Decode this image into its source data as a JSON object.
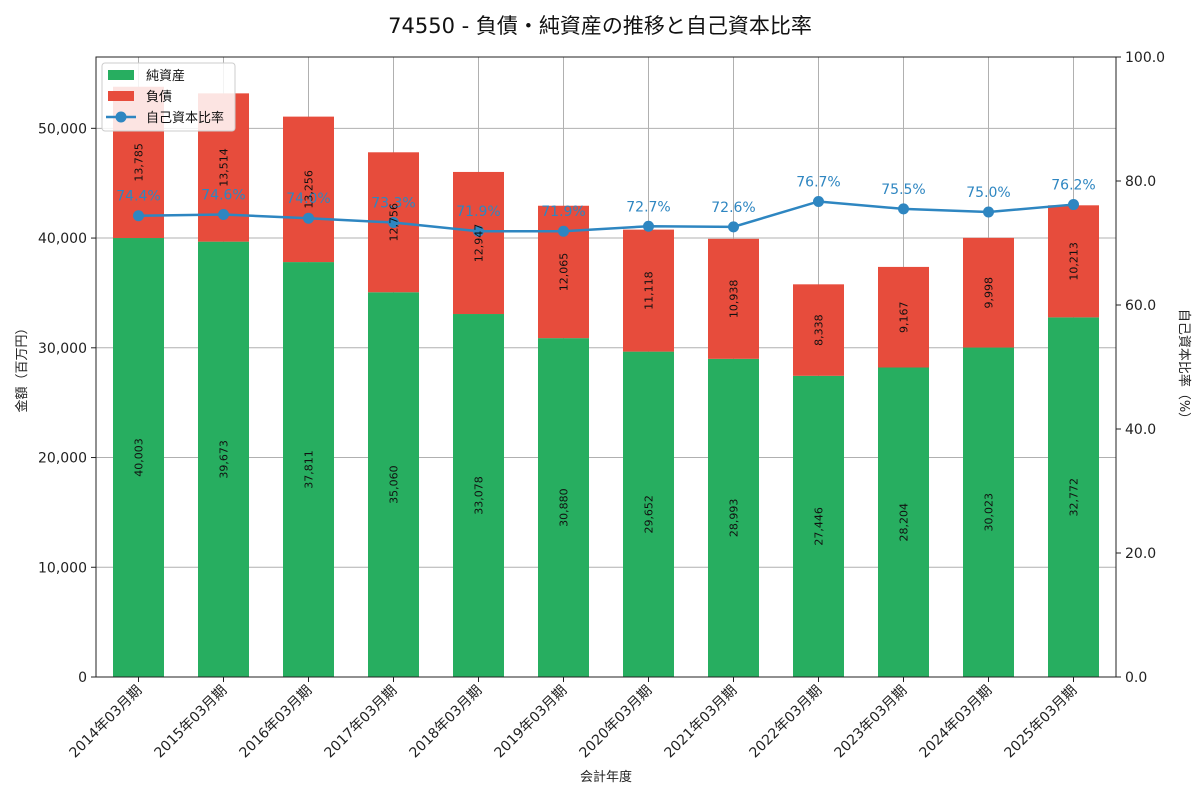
{
  "chart_data": {
    "type": "bar",
    "stacked": true,
    "title": "74550 - 負債・純資産の推移と自己資本比率",
    "xlabel": "会計年度",
    "ylabel": "金額（百万円）",
    "y2label": "自己資本比率（%）",
    "ylim": [
      0,
      56500
    ],
    "y2lim": [
      0,
      100
    ],
    "yticks": [
      "0",
      "10,000",
      "20,000",
      "30,000",
      "40,000",
      "50,000"
    ],
    "yticks_values": [
      0,
      10000,
      20000,
      30000,
      40000,
      50000
    ],
    "y2ticks": [
      "0.0",
      "20.0",
      "40.0",
      "60.0",
      "80.0",
      "100.0"
    ],
    "y2ticks_values": [
      0,
      20,
      40,
      60,
      80,
      100
    ],
    "grid": true,
    "legend_position": "top-left",
    "categories": [
      "2014年03月期",
      "2015年03月期",
      "2016年03月期",
      "2017年03月期",
      "2018年03月期",
      "2019年03月期",
      "2020年03月期",
      "2021年03月期",
      "2022年03月期",
      "2023年03月期",
      "2024年03月期",
      "2025年03月期"
    ],
    "series": [
      {
        "name": "純資産",
        "kind": "bar",
        "color": "#27ae60",
        "values": [
          40003,
          39673,
          37811,
          35060,
          33078,
          30880,
          29652,
          28993,
          27446,
          28204,
          30023,
          32772
        ],
        "labels": [
          "40,003",
          "39,673",
          "37,811",
          "35,060",
          "33,078",
          "30,880",
          "29,652",
          "28,993",
          "27,446",
          "28,204",
          "30,023",
          "32,772"
        ]
      },
      {
        "name": "負債",
        "kind": "bar",
        "color": "#e74c3c",
        "values": [
          13785,
          13514,
          13256,
          12756,
          12947,
          12065,
          11118,
          10938,
          8338,
          9167,
          9998,
          10213
        ],
        "labels": [
          "13,785",
          "13,514",
          "13,256",
          "12,756",
          "12,947",
          "12,065",
          "11,118",
          "10,938",
          "8,338",
          "9,167",
          "9,998",
          "10,213"
        ]
      },
      {
        "name": "自己資本比率",
        "kind": "line",
        "axis": "right",
        "color": "#2e86c1",
        "values": [
          74.4,
          74.6,
          74.0,
          73.3,
          71.9,
          71.9,
          72.7,
          72.6,
          76.7,
          75.5,
          75.0,
          76.2
        ],
        "labels": [
          "74.4%",
          "74.6%",
          "74.0%",
          "73.3%",
          "71.9%",
          "71.9%",
          "72.7%",
          "72.6%",
          "76.7%",
          "75.5%",
          "75.0%",
          "76.2%"
        ]
      }
    ]
  }
}
